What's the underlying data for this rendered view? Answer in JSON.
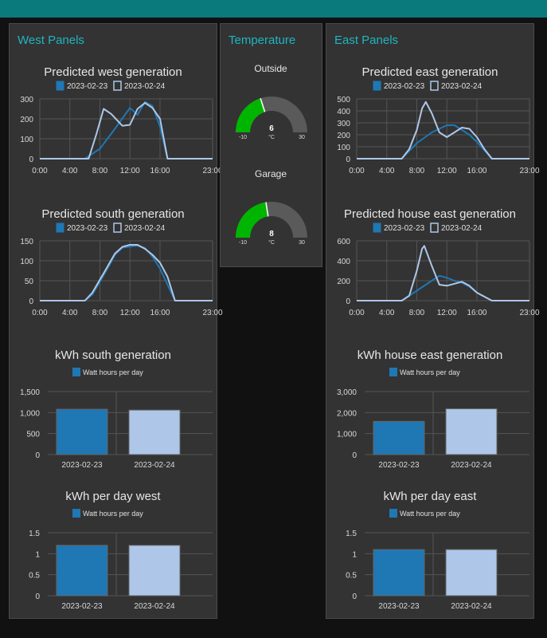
{
  "groups": {
    "west": {
      "title": "West Panels"
    },
    "temp": {
      "title": "Temperature"
    },
    "east": {
      "title": "East Panels"
    }
  },
  "colors": {
    "series1": "#1f77b4",
    "series2": "#aec7e8",
    "gauge": "#00b500",
    "gaugeTrack": "#5a5a5a",
    "accent": "#1fb5c1",
    "topbar": "#0b7a7d"
  },
  "legend": {
    "date1": "2023-02-23",
    "date2": "2023-02-24",
    "bar_label": "Watt hours per day"
  },
  "gauges": [
    {
      "label": "Outside",
      "value": "6",
      "unit": "°C",
      "min": "-10",
      "max": "30"
    },
    {
      "label": "Garage",
      "value": "8",
      "unit": "°C",
      "min": "-10",
      "max": "30"
    }
  ],
  "chart_data": [
    {
      "id": "west_gen",
      "type": "line",
      "title": "Predicted west generation",
      "xticks": [
        "0:00",
        "4:00",
        "8:00",
        "12:00",
        "16:00",
        "23:00"
      ],
      "yticks": [
        "300",
        "200",
        "100",
        "0"
      ],
      "ylim": [
        0,
        300
      ],
      "series": [
        {
          "name": "2023-02-23",
          "values": [
            [
              0,
              0
            ],
            [
              6,
              0
            ],
            [
              8,
              50
            ],
            [
              10,
              150
            ],
            [
              12,
              255
            ],
            [
              13,
              220
            ],
            [
              14,
              285
            ],
            [
              15,
              265
            ],
            [
              16,
              160
            ],
            [
              17,
              0
            ],
            [
              23,
              0
            ]
          ]
        },
        {
          "name": "2023-02-24",
          "values": [
            [
              0,
              0
            ],
            [
              6.5,
              0
            ],
            [
              7.5,
              120
            ],
            [
              8.5,
              250
            ],
            [
              9.5,
              225
            ],
            [
              11,
              165
            ],
            [
              12,
              170
            ],
            [
              13,
              250
            ],
            [
              14,
              280
            ],
            [
              15,
              255
            ],
            [
              16,
              200
            ],
            [
              17,
              0
            ],
            [
              23,
              0
            ]
          ]
        }
      ]
    },
    {
      "id": "south_gen",
      "type": "line",
      "title": "Predicted south generation",
      "xticks": [
        "0:00",
        "4:00",
        "8:00",
        "12:00",
        "16:00",
        "23:00"
      ],
      "yticks": [
        "150",
        "100",
        "50",
        "0"
      ],
      "ylim": [
        0,
        150
      ],
      "series": [
        {
          "name": "2023-02-23",
          "values": [
            [
              0,
              0
            ],
            [
              6,
              0
            ],
            [
              7,
              15
            ],
            [
              9,
              80
            ],
            [
              10,
              115
            ],
            [
              11,
              133
            ],
            [
              13,
              138
            ],
            [
              14,
              132
            ],
            [
              15,
              110
            ],
            [
              16,
              80
            ],
            [
              17,
              40
            ],
            [
              18,
              0
            ],
            [
              23,
              0
            ]
          ]
        },
        {
          "name": "2023-02-24",
          "values": [
            [
              0,
              0
            ],
            [
              6,
              0
            ],
            [
              7,
              20
            ],
            [
              9,
              85
            ],
            [
              10,
              118
            ],
            [
              11,
              135
            ],
            [
              12,
              140
            ],
            [
              13,
              140
            ],
            [
              14,
              130
            ],
            [
              15,
              115
            ],
            [
              16,
              95
            ],
            [
              17,
              60
            ],
            [
              18,
              0
            ],
            [
              23,
              0
            ]
          ]
        }
      ]
    },
    {
      "id": "south_kwh",
      "type": "bar",
      "title": "kWh south generation",
      "categories": [
        "2023-02-23",
        "2023-02-24"
      ],
      "values": [
        1080,
        1060
      ],
      "ylim": [
        0,
        1500
      ],
      "yticks": [
        "1,500",
        "1,000",
        "500",
        "0"
      ]
    },
    {
      "id": "west_kwh",
      "type": "bar",
      "title": "kWh per day west",
      "categories": [
        "2023-02-23",
        "2023-02-24"
      ],
      "values": [
        1.2,
        1.2
      ],
      "ylim": [
        0,
        1.5
      ],
      "yticks": [
        "1.5",
        "1",
        "0.5",
        "0"
      ]
    },
    {
      "id": "east_gen",
      "type": "line",
      "title": "Predicted east generation",
      "xticks": [
        "0:00",
        "4:00",
        "8:00",
        "12:00",
        "16:00",
        "23:00"
      ],
      "yticks": [
        "500",
        "400",
        "300",
        "200",
        "100",
        "0"
      ],
      "ylim": [
        0,
        500
      ],
      "series": [
        {
          "name": "2023-02-23",
          "values": [
            [
              0,
              0
            ],
            [
              6,
              0
            ],
            [
              8,
              130
            ],
            [
              10,
              220
            ],
            [
              12,
              280
            ],
            [
              13,
              280
            ],
            [
              14,
              240
            ],
            [
              15,
              200
            ],
            [
              16,
              140
            ],
            [
              17,
              70
            ],
            [
              18,
              0
            ],
            [
              23,
              0
            ]
          ]
        },
        {
          "name": "2023-02-24",
          "values": [
            [
              0,
              0
            ],
            [
              6,
              0
            ],
            [
              7,
              80
            ],
            [
              8,
              240
            ],
            [
              8.7,
              420
            ],
            [
              9.2,
              475
            ],
            [
              10,
              380
            ],
            [
              11,
              220
            ],
            [
              12,
              180
            ],
            [
              13,
              220
            ],
            [
              14,
              260
            ],
            [
              15,
              250
            ],
            [
              16,
              180
            ],
            [
              17,
              80
            ],
            [
              18,
              0
            ],
            [
              23,
              0
            ]
          ]
        }
      ]
    },
    {
      "id": "house_east_gen",
      "type": "line",
      "title": "Predicted house east generation",
      "xticks": [
        "0:00",
        "4:00",
        "8:00",
        "12:00",
        "16:00",
        "23:00"
      ],
      "yticks": [
        "600",
        "400",
        "200",
        "0"
      ],
      "ylim": [
        0,
        600
      ],
      "series": [
        {
          "name": "2023-02-23",
          "values": [
            [
              0,
              0
            ],
            [
              6,
              0
            ],
            [
              8,
              100
            ],
            [
              10,
              200
            ],
            [
              11,
              250
            ],
            [
              12,
              230
            ],
            [
              13,
              200
            ],
            [
              14,
              180
            ],
            [
              15,
              140
            ],
            [
              16,
              80
            ],
            [
              17,
              40
            ],
            [
              18,
              0
            ],
            [
              23,
              0
            ]
          ]
        },
        {
          "name": "2023-02-24",
          "values": [
            [
              0,
              0
            ],
            [
              6,
              0
            ],
            [
              7,
              50
            ],
            [
              8,
              300
            ],
            [
              8.7,
              520
            ],
            [
              9,
              550
            ],
            [
              10,
              350
            ],
            [
              11,
              160
            ],
            [
              12,
              150
            ],
            [
              13,
              170
            ],
            [
              14,
              190
            ],
            [
              15,
              150
            ],
            [
              16,
              80
            ],
            [
              17,
              40
            ],
            [
              18,
              0
            ],
            [
              23,
              0
            ]
          ]
        }
      ]
    },
    {
      "id": "house_east_kwh",
      "type": "bar",
      "title": "kWh house east generation",
      "categories": [
        "2023-02-23",
        "2023-02-24"
      ],
      "values": [
        1580,
        2180
      ],
      "ylim": [
        0,
        3000
      ],
      "yticks": [
        "3,000",
        "2,000",
        "1,000",
        "0"
      ]
    },
    {
      "id": "east_kwh",
      "type": "bar",
      "title": "kWh per day east",
      "categories": [
        "2023-02-23",
        "2023-02-24"
      ],
      "values": [
        1.1,
        1.1
      ],
      "ylim": [
        0,
        1.5
      ],
      "yticks": [
        "1.5",
        "1",
        "0.5",
        "0"
      ]
    }
  ]
}
